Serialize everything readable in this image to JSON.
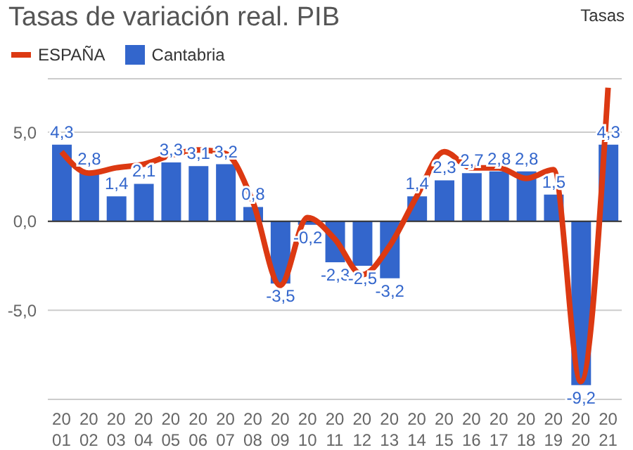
{
  "chart_data": {
    "type": "bar",
    "title": "Tasas de variación real. PIB",
    "ylabel": "Tasas",
    "categories": [
      "2001",
      "2002",
      "2003",
      "2004",
      "2005",
      "2006",
      "2007",
      "2008",
      "2009",
      "2010",
      "2011",
      "2012",
      "2013",
      "2014",
      "2015",
      "2016",
      "2017",
      "2018",
      "2019",
      "2020",
      "2021"
    ],
    "series": [
      {
        "name": "ESPAÑA",
        "type": "line",
        "color": "#dc3912",
        "values": [
          3.9,
          2.7,
          3.0,
          3.2,
          3.7,
          4.0,
          3.8,
          1.1,
          -3.6,
          0.2,
          -1.0,
          -3.0,
          -1.4,
          1.4,
          3.9,
          3.0,
          3.0,
          2.4,
          2.9,
          -9.0,
          7.5
        ]
      },
      {
        "name": "Cantabria",
        "color": "#3366cc",
        "values": [
          4.3,
          2.8,
          1.4,
          2.1,
          3.3,
          3.1,
          3.2,
          0.8,
          -3.5,
          -0.2,
          -2.3,
          -2.5,
          -3.2,
          1.4,
          2.3,
          2.7,
          2.8,
          2.8,
          1.5,
          -9.2,
          4.3
        ],
        "value_labels": [
          "4,3",
          "2,8",
          "1,4",
          "2,1",
          "3,3",
          "3,1",
          "3,2",
          "0,8",
          "-3,5",
          "-0,2",
          "-2,3",
          "-2,5",
          "-3,2",
          "1,4",
          "2,3",
          "2,7",
          "2,8",
          "2,8",
          "1,5",
          "-9,2",
          "4,3"
        ]
      }
    ],
    "ylim": [
      -10,
      8
    ],
    "yticks": [
      {
        "value": -5,
        "label": "-5,0"
      },
      {
        "value": 0,
        "label": "0,0"
      },
      {
        "value": 5,
        "label": "5,0"
      }
    ],
    "grid": "y",
    "legend": "top left"
  }
}
